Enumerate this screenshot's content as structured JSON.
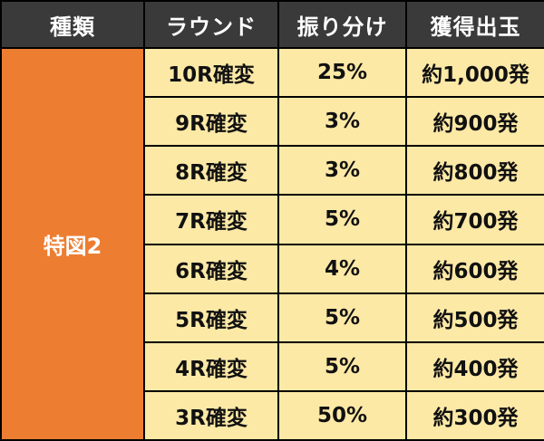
{
  "header": {
    "type": "種類",
    "round": "ラウンド",
    "distribution": "振り分け",
    "payout": "獲得出玉"
  },
  "category": "特図2",
  "rows": [
    {
      "round": "10R確変",
      "distribution": "25%",
      "payout": "約1,000発"
    },
    {
      "round": "9R確変",
      "distribution": "3%",
      "payout": "約900発"
    },
    {
      "round": "8R確変",
      "distribution": "3%",
      "payout": "約800発"
    },
    {
      "round": "7R確変",
      "distribution": "5%",
      "payout": "約700発"
    },
    {
      "round": "6R確変",
      "distribution": "4%",
      "payout": "約600発"
    },
    {
      "round": "5R確変",
      "distribution": "5%",
      "payout": "約500発"
    },
    {
      "round": "4R確変",
      "distribution": "5%",
      "payout": "約400発"
    },
    {
      "round": "3R確変",
      "distribution": "50%",
      "payout": "約300発"
    }
  ],
  "colors": {
    "header_bg": "#3a3a3a",
    "category_bg": "#ed7d31",
    "cell_bg": "#fde9a6"
  }
}
